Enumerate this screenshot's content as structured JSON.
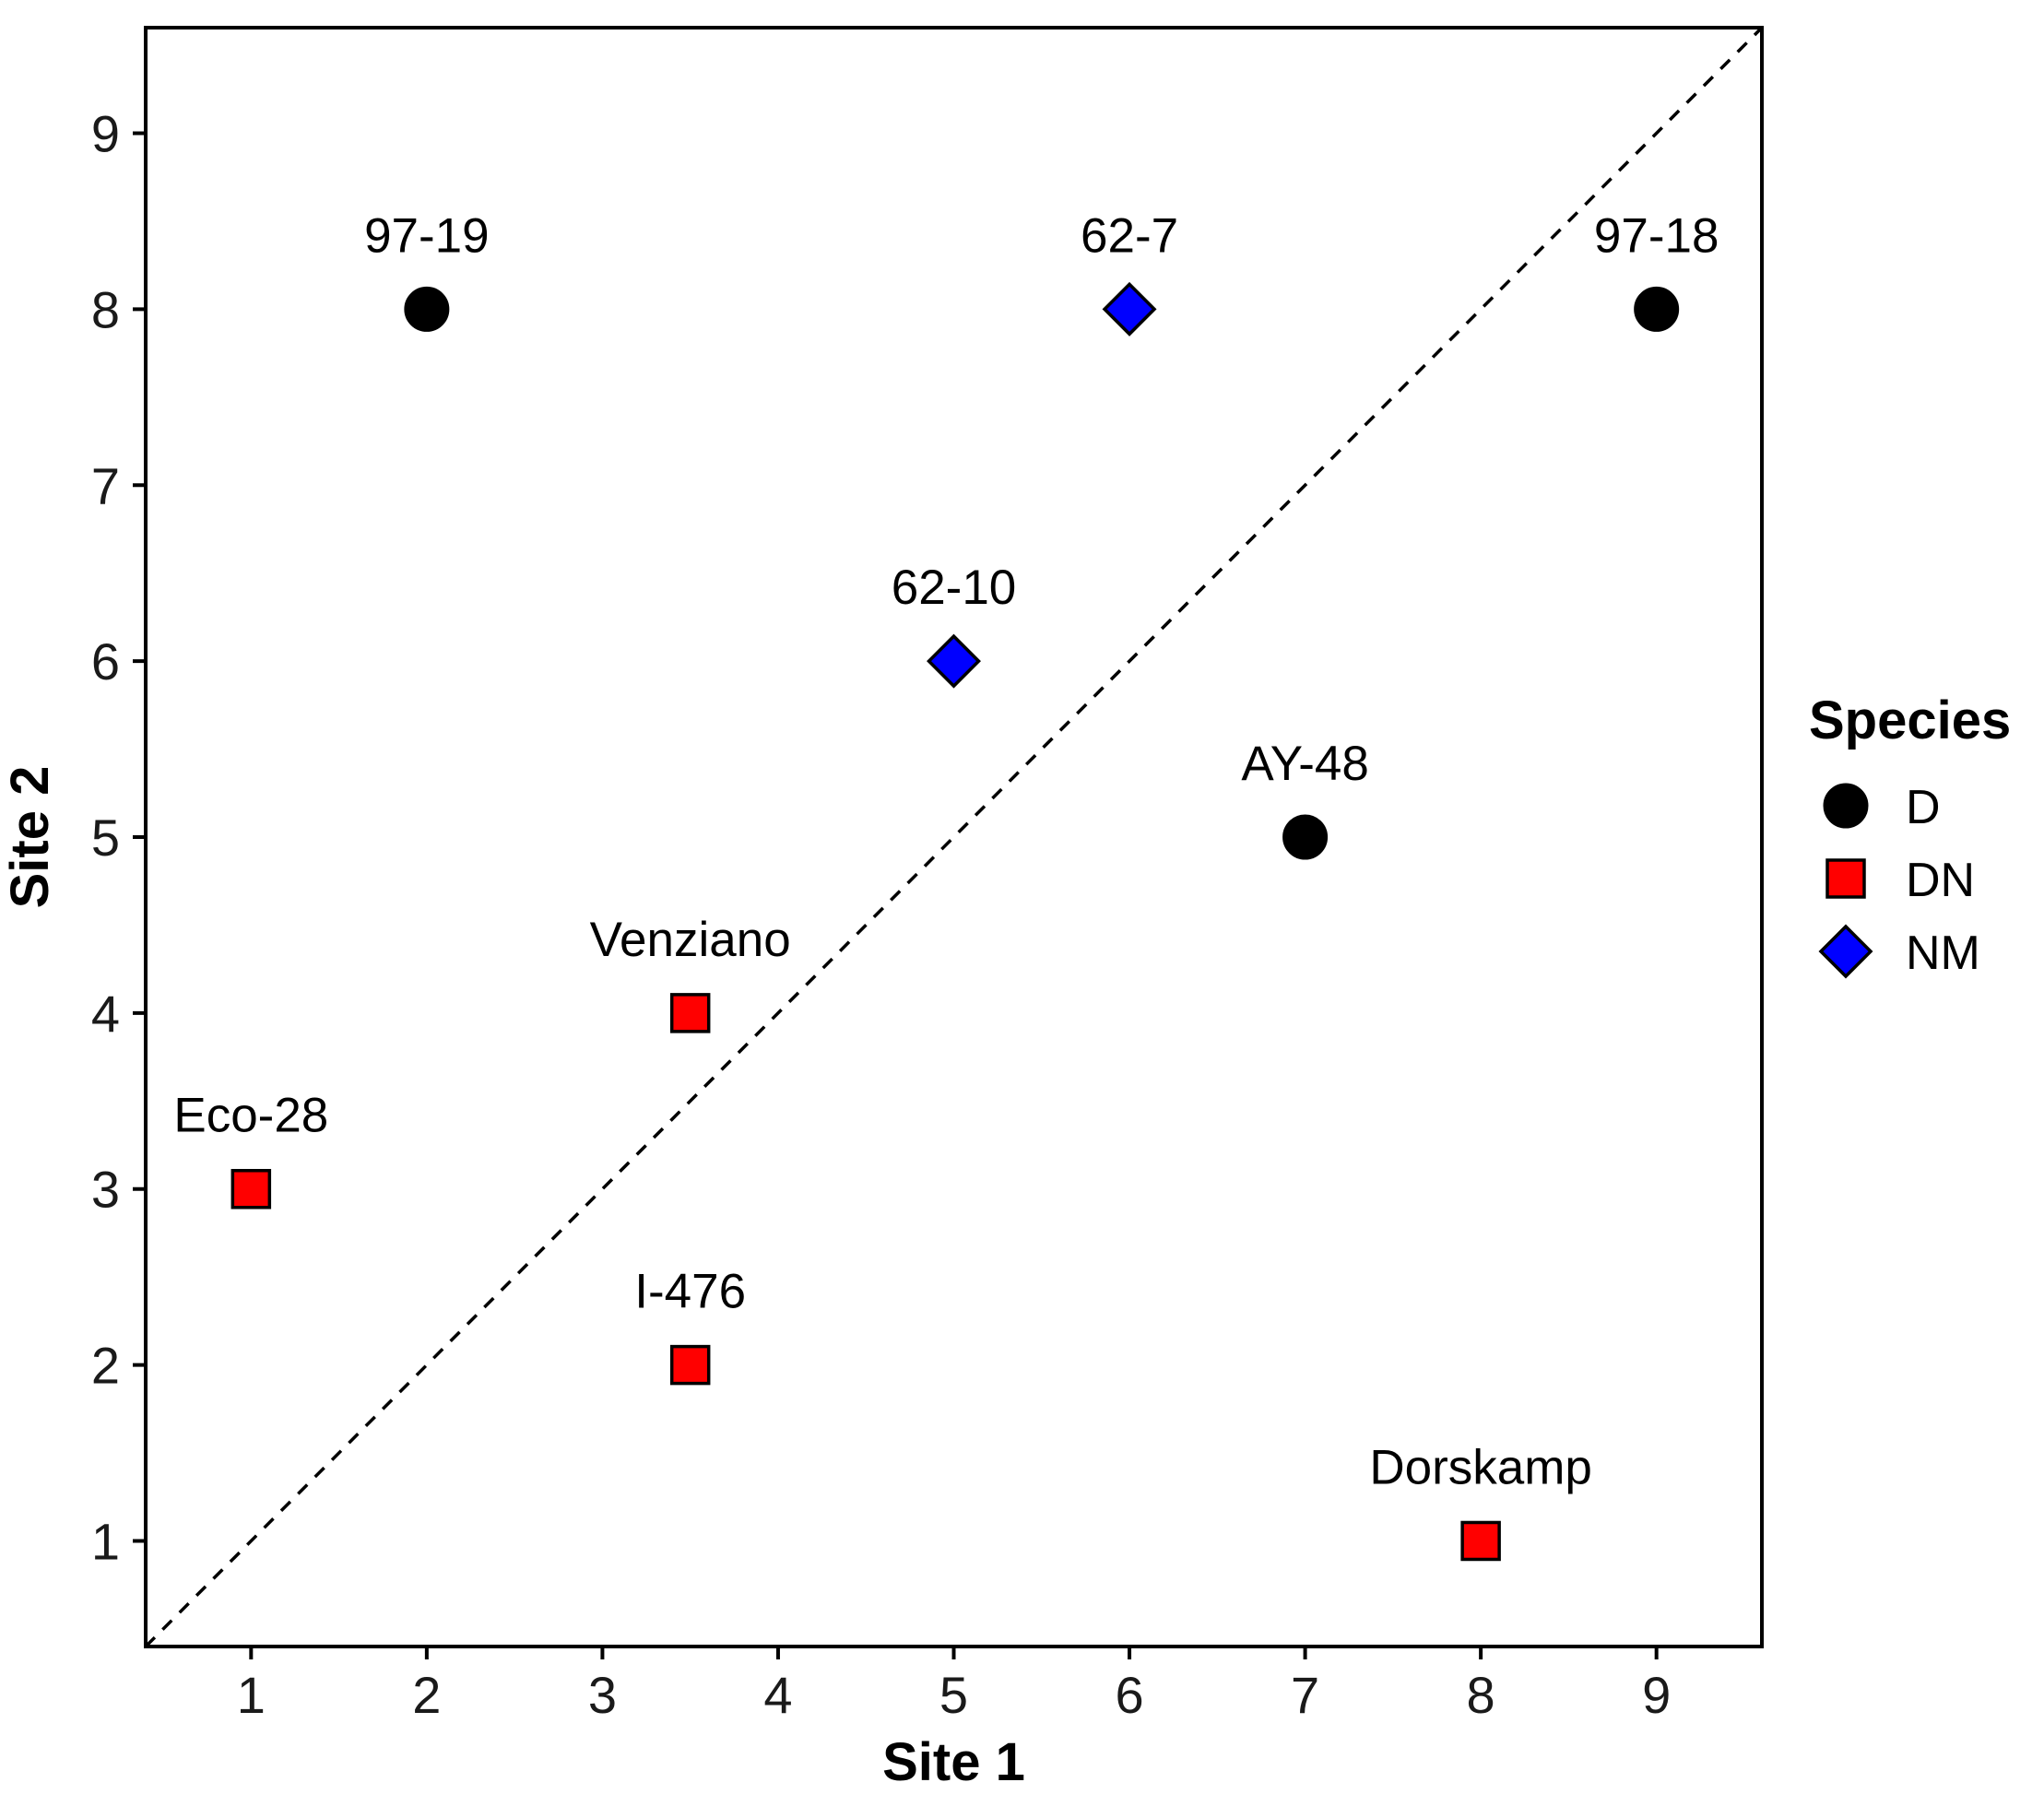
{
  "chart_data": {
    "type": "scatter",
    "title": "",
    "xlabel": "Site 1",
    "ylabel": "Site 2",
    "xlim": [
      0.4,
      9.6
    ],
    "ylim": [
      0.4,
      9.6
    ],
    "xticks": [
      1,
      2,
      3,
      4,
      5,
      6,
      7,
      8,
      9
    ],
    "yticks": [
      1,
      2,
      3,
      4,
      5,
      6,
      7,
      8,
      9
    ],
    "grid": false,
    "reference_line": {
      "type": "identity",
      "style": "dashed"
    },
    "legend": {
      "title": "Species",
      "placement": "right",
      "entries": [
        {
          "key": "D",
          "label": "D",
          "shape": "circle",
          "color": "#000000"
        },
        {
          "key": "DN",
          "label": "DN",
          "shape": "square",
          "color": "#ff0000"
        },
        {
          "key": "NM",
          "label": "NM",
          "shape": "diamond",
          "color": "#0000ff"
        }
      ]
    },
    "points": [
      {
        "label": "97-19",
        "x": 2,
        "y": 8,
        "species": "D"
      },
      {
        "label": "62-7",
        "x": 6,
        "y": 8,
        "species": "NM"
      },
      {
        "label": "97-18",
        "x": 9,
        "y": 8,
        "species": "D"
      },
      {
        "label": "62-10",
        "x": 5,
        "y": 6,
        "species": "NM"
      },
      {
        "label": "AY-48",
        "x": 7,
        "y": 5,
        "species": "D"
      },
      {
        "label": "Venziano",
        "x": 3.5,
        "y": 4,
        "species": "DN"
      },
      {
        "label": "Eco-28",
        "x": 1,
        "y": 3,
        "species": "DN"
      },
      {
        "label": "I-476",
        "x": 3.5,
        "y": 2,
        "species": "DN"
      },
      {
        "label": "Dorskamp",
        "x": 8,
        "y": 1,
        "species": "DN"
      }
    ]
  }
}
